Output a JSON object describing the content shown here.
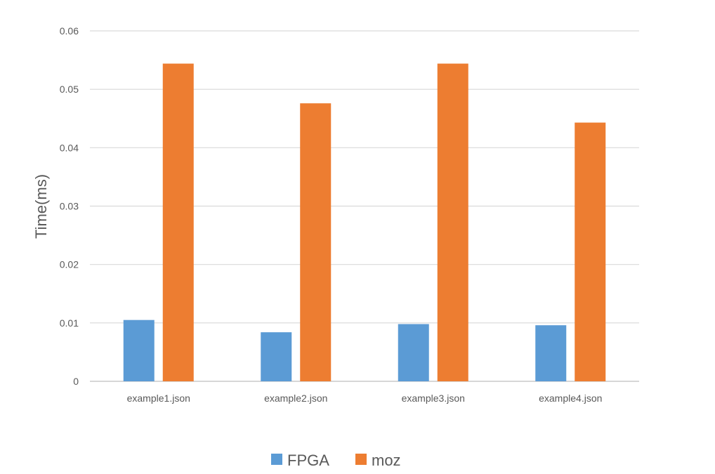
{
  "chart_data": {
    "type": "bar",
    "title": "",
    "xlabel": "",
    "ylabel": "Time(ms)",
    "categories": [
      "example1.json",
      "example2.json",
      "example3.json",
      "example4.json"
    ],
    "series": [
      {
        "name": "FPGA",
        "color": "#5B9BD5",
        "values": [
          0.0105,
          0.0084,
          0.0098,
          0.0096
        ]
      },
      {
        "name": "moz",
        "color": "#ED7D31",
        "values": [
          0.0544,
          0.0476,
          0.0544,
          0.0443
        ]
      }
    ],
    "ylim": [
      0,
      0.06
    ],
    "yticks": [
      "0",
      "0.01",
      "0.02",
      "0.03",
      "0.04",
      "0.05",
      "0.06"
    ],
    "grid": true,
    "legend_position": "bottom"
  }
}
